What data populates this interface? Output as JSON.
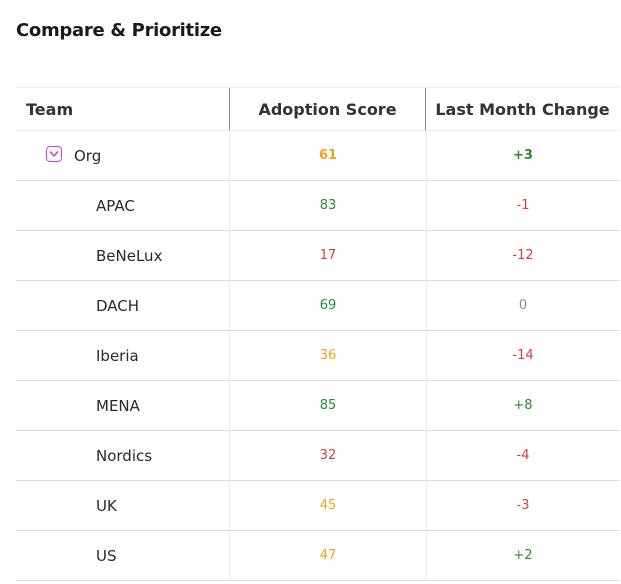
{
  "page": {
    "title": "Compare & Prioritize"
  },
  "table": {
    "headers": {
      "team": "Team",
      "score": "Adoption Score",
      "change": "Last Month Change"
    },
    "rows": [
      {
        "team": "Org",
        "score": "61",
        "change": "+3",
        "level": "parent",
        "score_color": "#f0a41a",
        "change_color": "#2b8a2b"
      },
      {
        "team": "APAC",
        "score": "83",
        "change": "-1",
        "level": "child",
        "score_color": "#2b8a2b",
        "change_color": "#e03a3a"
      },
      {
        "team": "BeNeLux",
        "score": "17",
        "change": "-12",
        "level": "child",
        "score_color": "#e03a3a",
        "change_color": "#e03a3a"
      },
      {
        "team": "DACH",
        "score": "69",
        "change": "0",
        "level": "child",
        "score_color": "#2b8a2b",
        "change_color": "#8a8a8a"
      },
      {
        "team": "Iberia",
        "score": "36",
        "change": "-14",
        "level": "child",
        "score_color": "#f0a41a",
        "change_color": "#e03a3a"
      },
      {
        "team": "MENA",
        "score": "85",
        "change": "+8",
        "level": "child",
        "score_color": "#2b8a2b",
        "change_color": "#2b8a2b"
      },
      {
        "team": "Nordics",
        "score": "32",
        "change": "-4",
        "level": "child",
        "score_color": "#e03a3a",
        "change_color": "#e03a3a"
      },
      {
        "team": "UK",
        "score": "45",
        "change": "-3",
        "level": "child",
        "score_color": "#f0a41a",
        "change_color": "#e03a3a"
      },
      {
        "team": "US",
        "score": "47",
        "change": "+2",
        "level": "child",
        "score_color": "#f0a41a",
        "change_color": "#2b8a2b"
      }
    ]
  },
  "icons": {
    "toggle": "chevron-down-icon"
  }
}
